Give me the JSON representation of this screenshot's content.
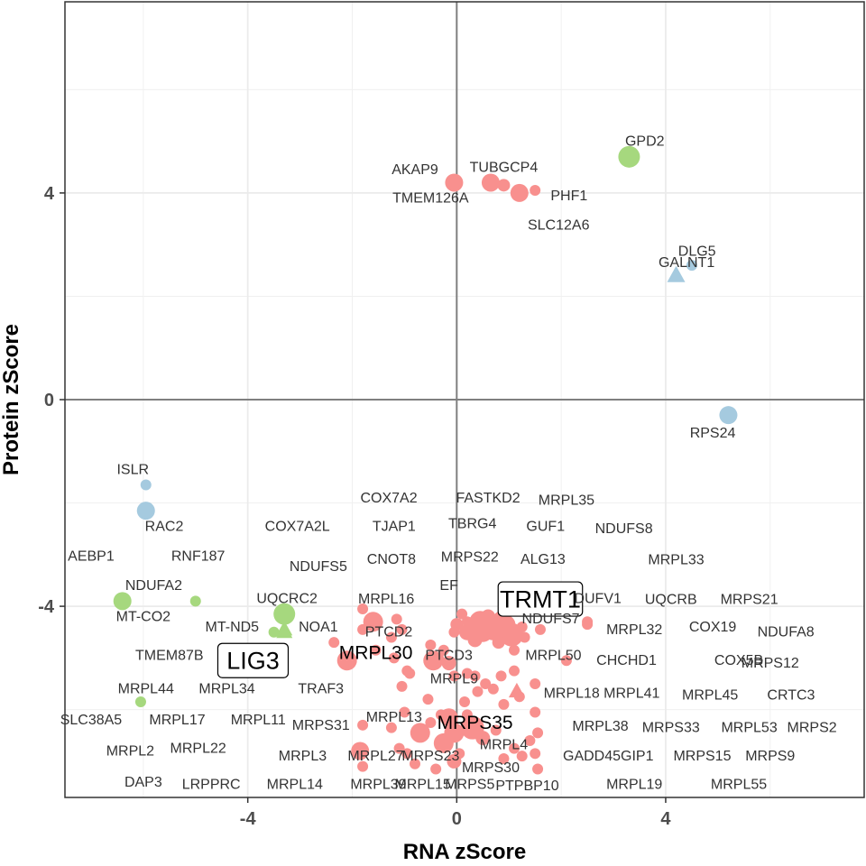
{
  "chart_data": {
    "type": "scatter",
    "xlabel": "RNA zScore",
    "ylabel": "Protein zScore",
    "xlim": [
      -7.5,
      7.8
    ],
    "ylim": [
      -7.7,
      7.7
    ],
    "x_ticks": [
      -4,
      0,
      4
    ],
    "y_ticks": [
      -4,
      0,
      4
    ],
    "grid": true,
    "legend": "none",
    "colors": {
      "red": "#F8908E",
      "green": "#A6D87E",
      "blue": "#A5CADF"
    },
    "points": [
      {
        "label": "GPD2",
        "x": 3.3,
        "y": 4.7,
        "color": "green",
        "size": 12,
        "shape": "circle",
        "lx": 3.6,
        "ly": 5.0
      },
      {
        "label": "AKAP9",
        "x": -0.05,
        "y": 4.2,
        "color": "red",
        "size": 10,
        "shape": "circle",
        "lx": -0.8,
        "ly": 4.45
      },
      {
        "label": "TUBGCP4",
        "x": 0.65,
        "y": 4.2,
        "color": "red",
        "size": 10,
        "shape": "circle",
        "lx": 0.9,
        "ly": 4.5
      },
      {
        "label": "TMEM126A",
        "x": 0.9,
        "y": 4.15,
        "color": "red",
        "size": 7,
        "shape": "circle",
        "lx": -0.5,
        "ly": 3.9
      },
      {
        "label": "PHF1",
        "x": 1.2,
        "y": 4.0,
        "color": "red",
        "size": 10,
        "shape": "circle",
        "lx": 2.15,
        "ly": 3.95
      },
      {
        "label": "SLC12A6",
        "x": 1.5,
        "y": 4.05,
        "color": "red",
        "size": 6,
        "shape": "circle",
        "lx": 1.95,
        "ly": 3.38
      },
      {
        "label": "DLG5",
        "x": 4.5,
        "y": 2.6,
        "color": "blue",
        "size": 6,
        "shape": "circle",
        "lx": 4.6,
        "ly": 2.87
      },
      {
        "label": "GALNT1",
        "x": 4.2,
        "y": 2.4,
        "color": "blue",
        "size": 10,
        "shape": "triangle",
        "lx": 4.4,
        "ly": 2.65
      },
      {
        "label": "RPS24",
        "x": 5.2,
        "y": -0.3,
        "color": "blue",
        "size": 10,
        "shape": "circle",
        "lx": 4.9,
        "ly": -0.65
      },
      {
        "label": "ISLR",
        "x": -5.95,
        "y": -1.65,
        "color": "blue",
        "size": 6,
        "shape": "circle",
        "lx": -6.2,
        "ly": -1.35
      },
      {
        "label": "RAC2",
        "x": -5.95,
        "y": -2.15,
        "color": "blue",
        "size": 10,
        "shape": "circle",
        "lx": -5.6,
        "ly": -2.45
      },
      {
        "label": "NDUFA2",
        "x": -5.0,
        "y": -3.9,
        "color": "green",
        "size": 6,
        "shape": "circle",
        "lx": -5.8,
        "ly": -3.6
      },
      {
        "label": "MT-CO2",
        "x": -6.4,
        "y": -3.9,
        "color": "green",
        "size": 10,
        "shape": "circle",
        "lx": -6.0,
        "ly": -4.2
      },
      {
        "label": "UQCRC2",
        "x": -3.3,
        "y": -4.15,
        "color": "green",
        "size": 12,
        "shape": "circle",
        "lx": -3.25,
        "ly": -3.85
      },
      {
        "label": "MT-ND5",
        "x": -3.5,
        "y": -4.5,
        "color": "green",
        "size": 6,
        "shape": "circle",
        "lx": -4.3,
        "ly": -4.4
      },
      {
        "label": "NOA1",
        "x": -3.3,
        "y": -4.45,
        "color": "green",
        "size": 9,
        "shape": "triangle",
        "lx": -2.65,
        "ly": -4.4
      },
      {
        "label": "SLC38A5",
        "x": -6.05,
        "y": -5.85,
        "color": "green",
        "size": 6,
        "shape": "circle",
        "lx": -7.0,
        "ly": -6.2
      },
      {
        "label": "TRMT1",
        "x": 0.5,
        "y": -4.5,
        "color": "red",
        "size": 11,
        "shape": "circle",
        "lx": 1.6,
        "ly": -3.86,
        "box": true
      },
      {
        "label": "LIG3",
        "x": -3.3,
        "y": -4.5,
        "color": "green",
        "size": 9,
        "shape": "triangle",
        "lx": -3.9,
        "ly": -5.05,
        "box": true
      },
      {
        "label": "MRPL30",
        "x": -2.1,
        "y": -5.05,
        "color": "red",
        "size": 11,
        "shape": "circle",
        "lx": -1.55,
        "ly": -4.9,
        "big": true
      },
      {
        "label": "MRPS35",
        "x": 1.15,
        "y": -5.65,
        "color": "red",
        "size": 9,
        "shape": "triangle",
        "lx": 0.35,
        "ly": -6.25,
        "big": true
      },
      {
        "label": "DUFV1",
        "x": 2.5,
        "y": -4.3,
        "color": "red",
        "size": 6,
        "shape": "circle",
        "lx": 2.7,
        "ly": -3.85
      },
      {
        "label": "MRPL32",
        "x": 2.5,
        "y": -4.35,
        "color": "red",
        "size": 6,
        "shape": "circle",
        "lx": 3.4,
        "ly": -4.45
      },
      {
        "label": "MRPL50",
        "x": 1.1,
        "y": -4.85,
        "color": "red",
        "size": 6,
        "shape": "circle",
        "lx": 1.85,
        "ly": -4.95
      },
      {
        "label": "CHCHD1",
        "x": 2.1,
        "y": -5.05,
        "color": "red",
        "size": 6,
        "shape": "circle",
        "lx": 3.25,
        "ly": -5.05
      },
      {
        "label": "PTCD3",
        "x": -0.35,
        "y": -5.0,
        "color": "red",
        "size": 6,
        "shape": "circle",
        "lx": -0.15,
        "ly": -4.95
      },
      {
        "label": "PTCD2",
        "x": -1.25,
        "y": -4.6,
        "color": "red",
        "size": 6,
        "shape": "circle",
        "lx": -1.3,
        "ly": -4.5
      },
      {
        "label": "MRPL16",
        "x": -1.8,
        "y": -4.05,
        "color": "red",
        "size": 6,
        "shape": "circle",
        "lx": -1.35,
        "ly": -3.86
      },
      {
        "label": "MRPL9",
        "x": -0.05,
        "y": -5.35,
        "color": "red",
        "size": 6,
        "shape": "circle",
        "lx": -0.05,
        "ly": -5.4
      },
      {
        "label": "MRPL18",
        "x": 1.5,
        "y": -5.5,
        "color": "red",
        "size": 6,
        "shape": "circle",
        "lx": 2.2,
        "ly": -5.68
      },
      {
        "label": "MRPL13",
        "x": -1.0,
        "y": -6.05,
        "color": "red",
        "size": 6,
        "shape": "circle",
        "lx": -1.2,
        "ly": -6.15
      },
      {
        "label": "MRPL38",
        "x": 1.5,
        "y": -6.05,
        "color": "red",
        "size": 6,
        "shape": "circle",
        "lx": 2.75,
        "ly": -6.32
      },
      {
        "label": "MRPL4",
        "x": 1.4,
        "y": -6.6,
        "color": "red",
        "size": 6,
        "shape": "circle",
        "lx": 0.9,
        "ly": -6.68
      },
      {
        "label": "MRPS23",
        "x": -0.7,
        "y": -6.45,
        "color": "red",
        "size": 11,
        "shape": "circle",
        "lx": -0.5,
        "ly": -6.9
      },
      {
        "label": "MRPS30",
        "x": -0.05,
        "y": -7.0,
        "color": "red",
        "size": 8,
        "shape": "circle",
        "lx": 0.65,
        "ly": -7.12
      },
      {
        "label": "MRPL27",
        "x": -1.85,
        "y": -6.8,
        "color": "red",
        "size": 10,
        "shape": "circle",
        "lx": -1.55,
        "ly": -6.9
      },
      {
        "label": "MRPL3",
        "x": -1.8,
        "y": -7.1,
        "color": "red",
        "size": 6,
        "shape": "circle",
        "lx": -2.95,
        "ly": -6.9
      },
      {
        "label": "MRPS31",
        "x": -1.8,
        "y": -6.3,
        "color": "red",
        "size": 6,
        "shape": "circle",
        "lx": -2.6,
        "ly": -6.3
      },
      {
        "label": "GADD45GIP1",
        "x": 1.5,
        "y": -6.85,
        "color": "red",
        "size": 6,
        "shape": "circle",
        "lx": 2.9,
        "ly": -6.9
      },
      {
        "label": "PTPBP10",
        "x": 1.55,
        "y": -7.15,
        "color": "red",
        "size": 6,
        "shape": "circle",
        "lx": 1.35,
        "ly": -7.47
      },
      {
        "label": "MRPS22",
        "x": 0.2,
        "y": -4.3,
        "color": "red",
        "size": 6,
        "shape": "circle",
        "lx": 0.25,
        "ly": -3.05
      },
      {
        "label": "ALG13",
        "x": 1.25,
        "y": -4.4,
        "color": "red",
        "size": 6,
        "shape": "circle",
        "lx": 1.65,
        "ly": -3.09
      },
      {
        "label": "EF",
        "x": -0.05,
        "y": -4.5,
        "color": "red",
        "size": 6,
        "shape": "circle",
        "lx": -0.15,
        "ly": -3.6
      },
      {
        "label": "NDUFS7",
        "x": 1.6,
        "y": -4.45,
        "color": "red",
        "size": 6,
        "shape": "circle",
        "lx": 1.8,
        "ly": -4.24
      },
      {
        "label": "AEBP1",
        "lx": -7.0,
        "ly": -3.03
      },
      {
        "label": "RNF187",
        "lx": -4.95,
        "ly": -3.03
      },
      {
        "label": "COX7A2L",
        "lx": -3.05,
        "ly": -2.45
      },
      {
        "label": "TJAP1",
        "lx": -1.2,
        "ly": -2.45
      },
      {
        "label": "TBRG4",
        "lx": 0.3,
        "ly": -2.4
      },
      {
        "label": "GUF1",
        "lx": 1.7,
        "ly": -2.45
      },
      {
        "label": "NDUFS8",
        "lx": 3.2,
        "ly": -2.5
      },
      {
        "label": "COX7A2",
        "lx": -1.3,
        "ly": -1.9
      },
      {
        "label": "FASTKD2",
        "lx": 0.6,
        "ly": -1.9
      },
      {
        "label": "MRPL35",
        "lx": 2.1,
        "ly": -1.95
      },
      {
        "label": "NDUFS5",
        "lx": -2.65,
        "ly": -3.23
      },
      {
        "label": "CNOT8",
        "lx": -1.25,
        "ly": -3.09
      },
      {
        "label": "MRPL33",
        "lx": 4.2,
        "ly": -3.1
      },
      {
        "label": "UQCRB",
        "lx": 4.1,
        "ly": -3.87
      },
      {
        "label": "MRPS21",
        "lx": 5.6,
        "ly": -3.87
      },
      {
        "label": "COX19",
        "lx": 4.9,
        "ly": -4.4
      },
      {
        "label": "NDUFA8",
        "lx": 6.3,
        "ly": -4.5
      },
      {
        "label": "TMEM87B",
        "lx": -5.5,
        "ly": -4.95
      },
      {
        "label": "COX5B",
        "lx": 5.4,
        "ly": -5.05
      },
      {
        "label": "MRPS12",
        "lx": 6.0,
        "ly": -5.1
      },
      {
        "label": "MRPL44",
        "lx": -5.95,
        "ly": -5.6
      },
      {
        "label": "MRPL34",
        "lx": -4.4,
        "ly": -5.6
      },
      {
        "label": "TRAF3",
        "lx": -2.6,
        "ly": -5.6
      },
      {
        "label": "MRPL41",
        "lx": 3.35,
        "ly": -5.68
      },
      {
        "label": "MRPL45",
        "lx": 4.85,
        "ly": -5.72
      },
      {
        "label": "CRTC3",
        "lx": 6.4,
        "ly": -5.72
      },
      {
        "label": "MRPL17",
        "lx": -5.35,
        "ly": -6.2
      },
      {
        "label": "MRPL11",
        "lx": -3.8,
        "ly": -6.2
      },
      {
        "label": "MRPS33",
        "lx": 4.1,
        "ly": -6.35
      },
      {
        "label": "MRPL53",
        "lx": 5.6,
        "ly": -6.35
      },
      {
        "label": "MRPS2",
        "lx": 6.8,
        "ly": -6.35
      },
      {
        "label": "MRPL2",
        "lx": -6.25,
        "ly": -6.8
      },
      {
        "label": "MRPL22",
        "lx": -4.95,
        "ly": -6.75
      },
      {
        "label": "MRPS15",
        "lx": 4.7,
        "ly": -6.9
      },
      {
        "label": "MRPS9",
        "lx": 6.0,
        "ly": -6.9
      },
      {
        "label": "DAP3",
        "lx": -6.0,
        "ly": -7.4
      },
      {
        "label": "LRPPRC",
        "lx": -4.7,
        "ly": -7.45
      },
      {
        "label": "MRPL14",
        "lx": -3.1,
        "ly": -7.45
      },
      {
        "label": "MRPL39",
        "lx": -1.5,
        "ly": -7.45
      },
      {
        "label": "MRPL15",
        "lx": -0.65,
        "ly": -7.45
      },
      {
        "label": "MRPS5",
        "lx": 0.25,
        "ly": -7.45
      },
      {
        "label": "MRPL19",
        "lx": 3.4,
        "ly": -7.45
      },
      {
        "label": "MRPL55",
        "lx": 5.4,
        "ly": -7.45
      }
    ],
    "cluster_points": [
      [
        0.0,
        -4.35,
        7
      ],
      [
        0.2,
        -4.5,
        9
      ],
      [
        0.45,
        -4.3,
        12
      ],
      [
        0.7,
        -4.45,
        12
      ],
      [
        0.95,
        -4.35,
        10
      ],
      [
        1.05,
        -4.55,
        13
      ],
      [
        0.35,
        -4.65,
        8
      ],
      [
        0.8,
        -4.7,
        7
      ],
      [
        0.1,
        -4.15,
        6
      ],
      [
        1.3,
        -4.6,
        6
      ],
      [
        0.6,
        -4.2,
        8
      ],
      [
        0.85,
        -4.25,
        9
      ],
      [
        -1.8,
        -4.45,
        6
      ],
      [
        -1.6,
        -4.3,
        11
      ],
      [
        -1.15,
        -4.25,
        6
      ],
      [
        -2.35,
        -4.7,
        6
      ],
      [
        -1.05,
        -4.45,
        6
      ],
      [
        -1.55,
        -4.85,
        6
      ],
      [
        -1.2,
        -5.0,
        6
      ],
      [
        -0.95,
        -5.25,
        6
      ],
      [
        -0.9,
        -5.3,
        6
      ],
      [
        -0.5,
        -4.75,
        6
      ],
      [
        -0.15,
        -5.1,
        8
      ],
      [
        -0.45,
        -5.05,
        11
      ],
      [
        -0.25,
        -4.85,
        6
      ],
      [
        0.35,
        -5.35,
        6
      ],
      [
        0.55,
        -5.5,
        6
      ],
      [
        0.2,
        -5.3,
        6
      ],
      [
        0.85,
        -5.35,
        6
      ],
      [
        1.1,
        -5.25,
        6
      ],
      [
        0.7,
        -5.6,
        6
      ],
      [
        0.4,
        -5.65,
        6
      ],
      [
        -1.05,
        -5.55,
        6
      ],
      [
        -0.55,
        -5.8,
        6
      ],
      [
        0.15,
        -5.85,
        6
      ],
      [
        0.9,
        -5.9,
        6
      ],
      [
        1.2,
        -5.75,
        6
      ],
      [
        -0.15,
        -6.15,
        10
      ],
      [
        -0.05,
        -6.45,
        11
      ],
      [
        0.3,
        -6.35,
        13
      ],
      [
        0.5,
        -6.55,
        8
      ],
      [
        -0.5,
        -6.25,
        6
      ],
      [
        -0.25,
        -6.65,
        11
      ],
      [
        0.75,
        -6.4,
        6
      ],
      [
        -0.95,
        -6.85,
        6
      ],
      [
        -0.8,
        -7.05,
        6
      ],
      [
        -1.25,
        -6.35,
        6
      ],
      [
        -1.1,
        -6.75,
        6
      ],
      [
        -0.4,
        -7.15,
        6
      ],
      [
        0.05,
        -6.85,
        6
      ],
      [
        0.9,
        -6.95,
        6
      ],
      [
        1.1,
        -6.75,
        6
      ],
      [
        1.55,
        -6.45,
        6
      ],
      [
        1.25,
        -6.9,
        6
      ],
      [
        -0.3,
        -6.1,
        6
      ],
      [
        0.2,
        -6.1,
        6
      ]
    ]
  }
}
